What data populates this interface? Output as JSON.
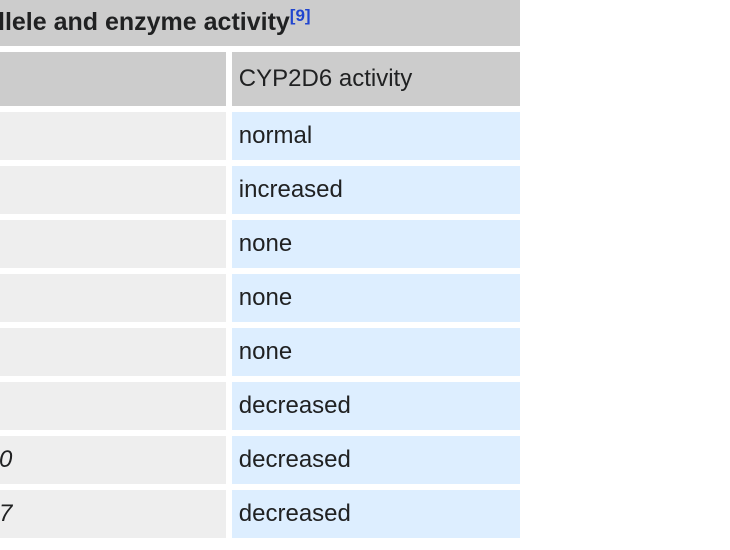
{
  "page": {
    "background_color": "#ffffff",
    "description": "Cropped web-page table of CYP2D6 alleles and enzyme activity; left column is cut off by the viewport edge"
  },
  "table": {
    "title": {
      "visible_text": "llele and enzyme activity",
      "reference_label": "[9]"
    },
    "header": {
      "allele_column_visible": "",
      "activity_column": "CYP2D6 activity"
    },
    "rows": [
      {
        "allele_visible_fragment": "",
        "activity": "normal"
      },
      {
        "allele_visible_fragment": "",
        "activity": "increased"
      },
      {
        "allele_visible_fragment": "",
        "activity": "none"
      },
      {
        "allele_visible_fragment": "",
        "activity": "none"
      },
      {
        "allele_visible_fragment": "",
        "activity": "none"
      },
      {
        "allele_visible_fragment": "",
        "activity": "decreased"
      },
      {
        "allele_visible_fragment": "0",
        "activity": "decreased"
      },
      {
        "allele_visible_fragment": "7",
        "activity": "decreased"
      }
    ],
    "colors": {
      "title_header_bg": "#cccccc",
      "allele_cell_bg": "#eeeeee",
      "activity_cell_bg": "#ddeeff",
      "text": "#202122",
      "reference_link": "#2045cf",
      "cell_gap": "#ffffff"
    }
  }
}
